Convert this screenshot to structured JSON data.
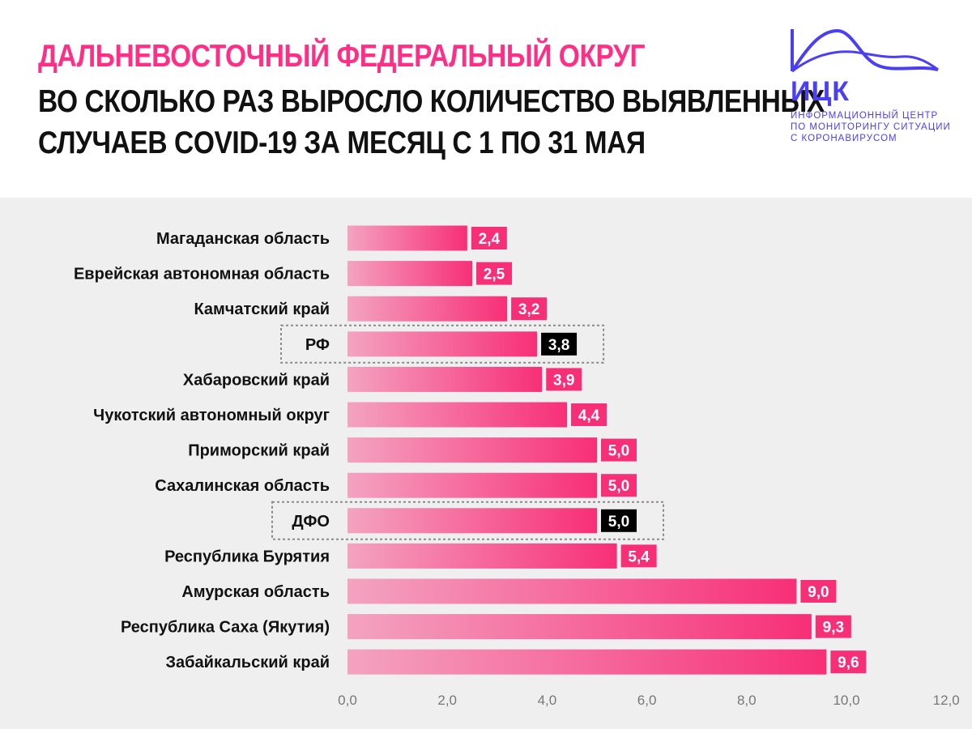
{
  "header": {
    "title_line_1": "ДАЛЬНЕВОСТОЧНЫЙ ФЕДЕРАЛЬНЫЙ ОКРУГ",
    "title_line_2": "ВО СКОЛЬКО РАЗ ВЫРОСЛО КОЛИЧЕСТВО ВЫЯВЛЕННЫХ",
    "title_line_3": "СЛУЧАЕВ COVID-19 ЗА МЕСЯЦ С 1 ПО 31 МАЯ"
  },
  "logo": {
    "name": "ИЦК",
    "subtitle_lines": [
      "ИНФОРМАЦИОННЫЙ ЦЕНТР",
      "ПО МОНИТОРИНГУ СИТУАЦИИ",
      "С КОРОНАВИРУСОМ"
    ],
    "color": "#4a3ff2"
  },
  "colors": {
    "title_accent": "#ff2e86",
    "title_main": "#111111",
    "bar_start": "#f4a3c0",
    "bar_end": "#f72f77",
    "label_box": "#f72f77",
    "highlight_label_box": "#000000",
    "background": "#efefef"
  },
  "chart_data": {
    "type": "bar",
    "orientation": "horizontal",
    "categories": [
      "Магаданская область",
      "Еврейская автономная область",
      "Камчатский край",
      "РФ",
      "Хабаровский край",
      "Чукотский автономный округ",
      "Приморский край",
      "Сахалинская область",
      "ДФО",
      "Республика Бурятия",
      "Амурская область",
      "Республика Саха (Якутия)",
      "Забайкальский край"
    ],
    "values": [
      2.4,
      2.5,
      3.2,
      3.8,
      3.9,
      4.4,
      5.0,
      5.0,
      5.0,
      5.4,
      9.0,
      9.3,
      9.6
    ],
    "value_labels": [
      "2,4",
      "2,5",
      "3,2",
      "3,8",
      "3,9",
      "4,4",
      "5,0",
      "5,0",
      "5,0",
      "5,4",
      "9,0",
      "9,3",
      "9,6"
    ],
    "highlighted": [
      "РФ",
      "ДФО"
    ],
    "xlim": [
      0,
      12
    ],
    "x_ticks": [
      0,
      2,
      4,
      6,
      8,
      10,
      12
    ],
    "x_tick_labels": [
      "0,0",
      "2,0",
      "4,0",
      "6,0",
      "8,0",
      "10,0",
      "12,0"
    ],
    "grid": false,
    "legend": "none"
  }
}
